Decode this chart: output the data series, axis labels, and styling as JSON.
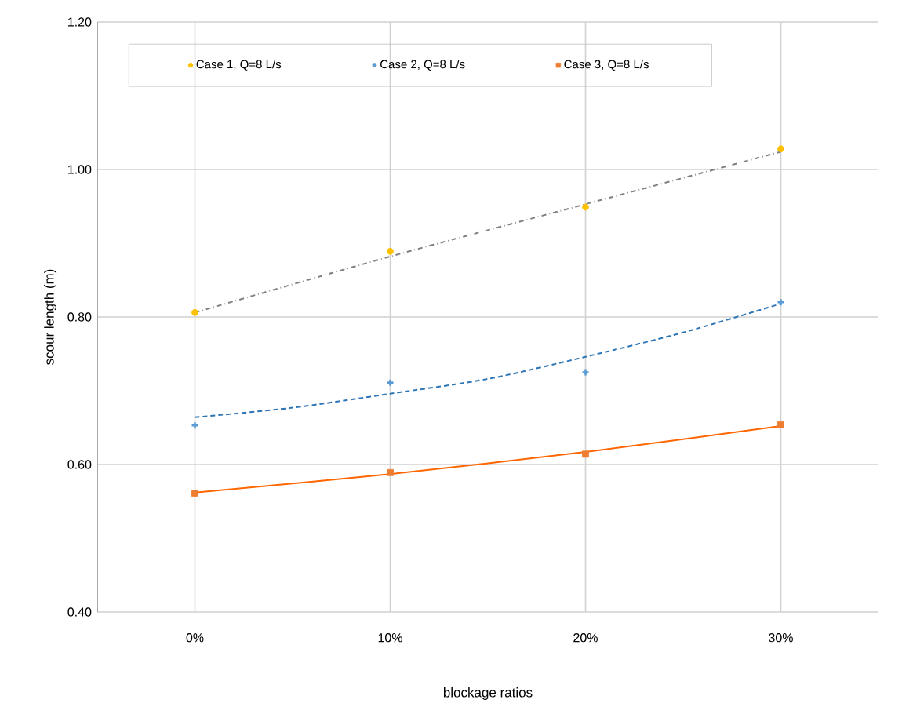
{
  "chart_data": {
    "type": "scatter",
    "xlabel": "blockage ratios",
    "ylabel": "scour length (m)",
    "x": [
      0,
      10,
      20,
      30
    ],
    "xlim": [
      -5,
      35
    ],
    "xticks": [
      {
        "value": 0,
        "label": "0%"
      },
      {
        "value": 10,
        "label": "10%"
      },
      {
        "value": 20,
        "label": "20%"
      },
      {
        "value": 30,
        "label": "30%"
      }
    ],
    "ylim": [
      0.4,
      1.2
    ],
    "yticks": [
      {
        "value": 0.4,
        "label": "0.40"
      },
      {
        "value": 0.6,
        "label": "0.60"
      },
      {
        "value": 0.8,
        "label": "0.80"
      },
      {
        "value": 1.0,
        "label": "1.00"
      },
      {
        "value": 1.2,
        "label": "1.20"
      }
    ],
    "grid": true,
    "legend": "top",
    "series": [
      {
        "name": "Case 1, Q=8 L/s",
        "color": "#ffc000",
        "marker": "circle",
        "values": [
          0.806,
          0.889,
          0.949,
          1.028
        ]
      },
      {
        "name": "Case 2,  Q=8 L/s",
        "color": "#5b9bd5",
        "marker": "cross",
        "values": [
          0.653,
          0.711,
          0.725,
          0.82
        ]
      },
      {
        "name": "Case 3,  Q=8 L/s",
        "color": "#ed7d31",
        "marker": "square",
        "values": [
          0.561,
          0.589,
          0.614,
          0.654
        ]
      },
      {
        "type": "line",
        "color": "#808080",
        "line_style": "dashed",
        "marker": "none",
        "x": [
          0,
          10,
          20,
          30
        ],
        "values": [
          0.806,
          0.882,
          0.953,
          1.024
        ]
      },
      {
        "type": "line",
        "color": "#2e75b6",
        "line_style": "dotted",
        "marker": "none",
        "x": [
          0,
          5,
          10,
          15,
          20,
          25,
          30
        ],
        "values": [
          0.664,
          0.677,
          0.696,
          0.716,
          0.746,
          0.779,
          0.818
        ]
      },
      {
        "type": "line",
        "color": "#ff6600",
        "line_style": "solid",
        "marker": "none",
        "x": [
          0,
          10,
          20,
          30
        ],
        "values": [
          0.562,
          0.587,
          0.617,
          0.652
        ]
      }
    ]
  }
}
